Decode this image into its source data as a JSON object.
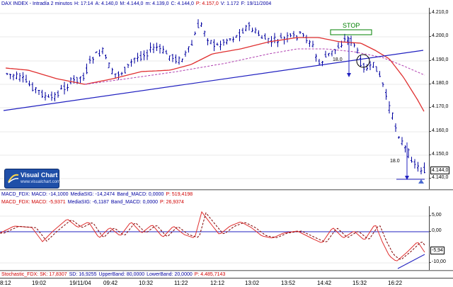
{
  "price_panel": {
    "info_parts": [
      {
        "text": "DAX INDEX - Intradía 2 minutos",
        "color": "#0000a0"
      },
      {
        "text": "H: 17:14",
        "color": "#0000a0"
      },
      {
        "text": "A: 4.140,0",
        "color": "#0000a0"
      },
      {
        "text": "M: 4.144,0",
        "color": "#0000a0"
      },
      {
        "text": "m: 4.139,0",
        "color": "#0000a0"
      },
      {
        "text": "C: 4.144,0",
        "color": "#0000a0"
      },
      {
        "text": "P: 4.157,0",
        "color": "#d00000"
      },
      {
        "text": "V: 1.172",
        "color": "#0000a0"
      },
      {
        "text": "F: 19/11/2004",
        "color": "#0000a0"
      }
    ],
    "axis_labels": [
      "4.210,0",
      "4.200,0",
      "4.190,0",
      "4.180,0",
      "4.170,0",
      "4.160,0",
      "4.150,0",
      "4.140,0"
    ],
    "last_price_tag": "4.144,0",
    "annotations": {
      "stop_label": "STOP",
      "measure_label_1": "18.0",
      "measure_label_2": "18.0"
    }
  },
  "logo": {
    "name": "Visual Chart",
    "url": "www.visualchart.com"
  },
  "macd_panel": {
    "info_line_1": [
      {
        "text": "MACD_FDX: MACD: -14,1000",
        "color": "#0000a0"
      },
      {
        "text": "MediaSIG: -14,2474",
        "color": "#0000a0"
      },
      {
        "text": "Band_MACD: 0,0000",
        "color": "#0000a0"
      },
      {
        "text": "P: 519,4198",
        "color": "#d00000"
      }
    ],
    "info_line_2": [
      {
        "text": "MACD_FDX: MACD: -5,9371",
        "color": "#d00000"
      },
      {
        "text": "MediaSIG: -6,1187",
        "color": "#0000a0"
      },
      {
        "text": "Band_MACD: 0,0000",
        "color": "#0000a0"
      },
      {
        "text": "P: 26,9374",
        "color": "#d00000"
      }
    ],
    "axis_labels": [
      "5,00",
      "0,00",
      "-10,00"
    ],
    "last_value_tag": "-5,94"
  },
  "stoch_panel": {
    "info_line": [
      {
        "text": "Stochastic_FDX: SK: 17,8307",
        "color": "#d00000"
      },
      {
        "text": "SD: 16,9255",
        "color": "#0000a0"
      },
      {
        "text": "UpperBand: 80,0000",
        "color": "#0000a0"
      },
      {
        "text": "LowerBand: 20,0000",
        "color": "#0000a0"
      },
      {
        "text": "P: 4.485,7143",
        "color": "#d00000"
      }
    ]
  },
  "time_axis": [
    "8:12",
    "19:02",
    "19/11/04",
    "09:42",
    "10:32",
    "11:22",
    "12:12",
    "13:02",
    "13:52",
    "14:42",
    "15:32",
    "16:22"
  ],
  "colors": {
    "candles": "#0000a0",
    "moving_average_fast": "#e03030",
    "moving_average_slow": "#b040b0",
    "trendline": "#2020c0",
    "macd_line": "#e03030",
    "macd_signal": "#800000",
    "stop_box": "#008000",
    "stop_text": "#008000"
  }
}
